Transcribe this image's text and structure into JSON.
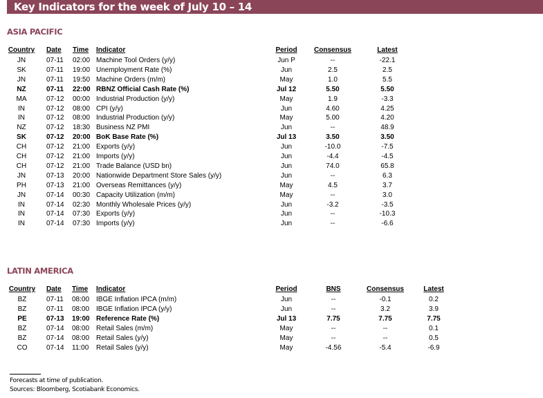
{
  "title": "Key Indicators for the week of July 10 – 14",
  "asia": {
    "heading": "ASIA PACIFIC",
    "columns": [
      "Country",
      "Date",
      "Time",
      "Indicator",
      "Period",
      "Consensus",
      "Latest"
    ],
    "rows": [
      {
        "country": "JN",
        "date": "07-11",
        "time": "02:00",
        "indicator": "Machine Tool Orders (y/y)",
        "period": "Jun P",
        "consensus": "--",
        "latest": "-22.1",
        "bold": false
      },
      {
        "country": "SK",
        "date": "07-11",
        "time": "19:00",
        "indicator": "Unemployment Rate (%)",
        "period": "Jun",
        "consensus": "2.5",
        "latest": "2.5",
        "bold": false
      },
      {
        "country": "JN",
        "date": "07-11",
        "time": "19:50",
        "indicator": "Machine Orders (m/m)",
        "period": "May",
        "consensus": "1.0",
        "latest": "5.5",
        "bold": false
      },
      {
        "country": "NZ",
        "date": "07-11",
        "time": "22:00",
        "indicator": "RBNZ Official Cash Rate (%)",
        "period": "Jul 12",
        "consensus": "5.50",
        "latest": "5.50",
        "bold": true
      },
      {
        "country": "MA",
        "date": "07-12",
        "time": "00:00",
        "indicator": "Industrial Production (y/y)",
        "period": "May",
        "consensus": "1.9",
        "latest": "-3.3",
        "bold": false
      },
      {
        "country": "IN",
        "date": "07-12",
        "time": "08:00",
        "indicator": "CPI (y/y)",
        "period": "Jun",
        "consensus": "4.60",
        "latest": "4.25",
        "bold": false
      },
      {
        "country": "IN",
        "date": "07-12",
        "time": "08:00",
        "indicator": "Industrial Production (y/y)",
        "period": "May",
        "consensus": "5.00",
        "latest": "4.20",
        "bold": false
      },
      {
        "country": "NZ",
        "date": "07-12",
        "time": "18:30",
        "indicator": "Business NZ PMI",
        "period": "Jun",
        "consensus": "--",
        "latest": "48.9",
        "bold": false
      },
      {
        "country": "SK",
        "date": "07-12",
        "time": "20:00",
        "indicator": "BoK Base Rate (%)",
        "period": "Jul 13",
        "consensus": "3.50",
        "latest": "3.50",
        "bold": true
      },
      {
        "country": "CH",
        "date": "07-12",
        "time": "21:00",
        "indicator": "Exports (y/y)",
        "period": "Jun",
        "consensus": "-10.0",
        "latest": "-7.5",
        "bold": false
      },
      {
        "country": "CH",
        "date": "07-12",
        "time": "21:00",
        "indicator": "Imports (y/y)",
        "period": "Jun",
        "consensus": "-4.4",
        "latest": "-4.5",
        "bold": false
      },
      {
        "country": "CH",
        "date": "07-12",
        "time": "21:00",
        "indicator": "Trade Balance (USD bn)",
        "period": "Jun",
        "consensus": "74.0",
        "latest": "65.8",
        "bold": false
      },
      {
        "country": "JN",
        "date": "07-13",
        "time": "20:00",
        "indicator": "Nationwide Department Store Sales (y/y)",
        "period": "Jun",
        "consensus": "--",
        "latest": "6.3",
        "bold": false
      },
      {
        "country": "PH",
        "date": "07-13",
        "time": "21:00",
        "indicator": "Overseas Remittances (y/y)",
        "period": "May",
        "consensus": "4.5",
        "latest": "3.7",
        "bold": false
      },
      {
        "country": "JN",
        "date": "07-14",
        "time": "00:30",
        "indicator": "Capacity Utilization (m/m)",
        "period": "May",
        "consensus": "--",
        "latest": "3.0",
        "bold": false
      },
      {
        "country": "IN",
        "date": "07-14",
        "time": "02:30",
        "indicator": "Monthly Wholesale Prices (y/y)",
        "period": "Jun",
        "consensus": "-3.2",
        "latest": "-3.5",
        "bold": false
      },
      {
        "country": "IN",
        "date": "07-14",
        "time": "07:30",
        "indicator": "Exports (y/y)",
        "period": "Jun",
        "consensus": "--",
        "latest": "-10.3",
        "bold": false
      },
      {
        "country": "IN",
        "date": "07-14",
        "time": "07:30",
        "indicator": "Imports (y/y)",
        "period": "Jun",
        "consensus": "--",
        "latest": "-6.6",
        "bold": false
      }
    ]
  },
  "latam": {
    "heading": "LATIN AMERICA",
    "columns": [
      "Country",
      "Date",
      "Time",
      "Indicator",
      "Period",
      "BNS",
      "Consensus",
      "Latest"
    ],
    "rows": [
      {
        "country": "BZ",
        "date": "07-11",
        "time": "08:00",
        "indicator": "IBGE Inflation IPCA (m/m)",
        "period": "Jun",
        "bns": "--",
        "consensus": "-0.1",
        "latest": "0.2",
        "bold": false
      },
      {
        "country": "BZ",
        "date": "07-11",
        "time": "08:00",
        "indicator": "IBGE Inflation IPCA (y/y)",
        "period": "Jun",
        "bns": "--",
        "consensus": "3.2",
        "latest": "3.9",
        "bold": false
      },
      {
        "country": "PE",
        "date": "07-13",
        "time": "19:00",
        "indicator": "Reference Rate (%)",
        "period": "Jul 13",
        "bns": "7.75",
        "consensus": "7.75",
        "latest": "7.75",
        "bold": true
      },
      {
        "country": "BZ",
        "date": "07-14",
        "time": "08:00",
        "indicator": "Retail Sales (m/m)",
        "period": "May",
        "bns": "--",
        "consensus": "--",
        "latest": "0.1",
        "bold": false
      },
      {
        "country": "BZ",
        "date": "07-14",
        "time": "08:00",
        "indicator": "Retail Sales (y/y)",
        "period": "May",
        "bns": "--",
        "consensus": "--",
        "latest": "0.5",
        "bold": false
      },
      {
        "country": "CO",
        "date": "07-14",
        "time": "11:00",
        "indicator": "Retail Sales (y/y)",
        "period": "May",
        "bns": "-4.56",
        "consensus": "-5.4",
        "latest": "-6.9",
        "bold": false
      }
    ]
  },
  "footnotes": [
    "Forecasts at time of publication.",
    "Sources: Bloomberg, Scotiabank Economics."
  ],
  "colors": {
    "brand": "#8B4558"
  }
}
